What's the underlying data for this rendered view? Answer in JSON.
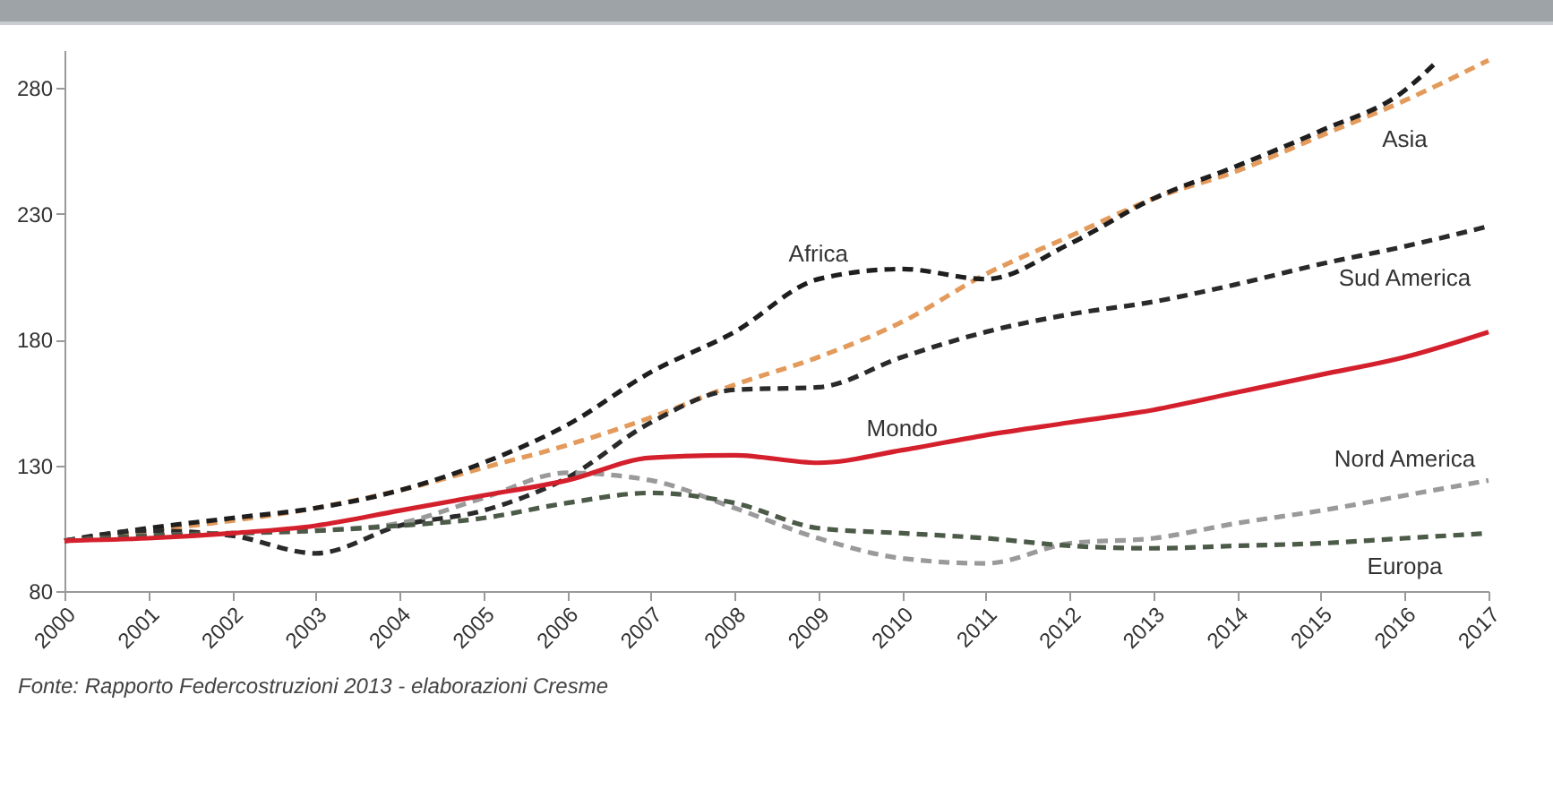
{
  "chart_data": {
    "type": "line",
    "x": [
      2000,
      2001,
      2002,
      2003,
      2004,
      2005,
      2006,
      2007,
      2008,
      2009,
      2010,
      2011,
      2012,
      2013,
      2014,
      2015,
      2016,
      2017
    ],
    "xlim": [
      2000,
      2017
    ],
    "xticks": [
      2000,
      2001,
      2002,
      2003,
      2004,
      2005,
      2006,
      2007,
      2008,
      2009,
      2010,
      2011,
      2012,
      2013,
      2014,
      2015,
      2016,
      2017
    ],
    "ylim": [
      80,
      295
    ],
    "yticks": [
      80,
      130,
      180,
      230,
      280
    ],
    "grid": false,
    "legend": false,
    "marker": "none",
    "series": [
      {
        "name": "Asia",
        "color": "#e39a5a",
        "line_style": "dashed",
        "values": [
          100,
          104,
          108,
          113,
          120,
          129,
          138,
          149,
          162,
          173,
          187,
          206,
          221,
          236,
          247,
          261,
          275,
          291
        ]
      },
      {
        "name": "Africa",
        "color": "#1e1e1e",
        "line_style": "dashed",
        "x": [
          2000,
          2001,
          2002,
          2003,
          2004,
          2005,
          2006,
          2007,
          2008,
          2009,
          2010,
          2011,
          2012,
          2013,
          2014,
          2015,
          2016,
          2016.4
        ],
        "values": [
          100,
          105,
          109,
          113,
          120,
          131,
          146,
          167,
          183,
          204,
          208,
          204,
          218,
          236,
          249,
          263,
          279,
          291
        ]
      },
      {
        "name": "Sud America",
        "color": "#2a2a2a",
        "line_style": "dashed",
        "values": [
          100,
          104,
          102,
          95,
          106,
          112,
          125,
          147,
          160,
          161,
          173,
          183,
          190,
          195,
          202,
          210,
          217,
          225
        ]
      },
      {
        "name": "Mondo",
        "color": "#d4202c",
        "line_style": "solid",
        "values": [
          100,
          101,
          103,
          106,
          112,
          118,
          124,
          133,
          134,
          131,
          136,
          142,
          147,
          152,
          159,
          166,
          173,
          183
        ]
      },
      {
        "name": "Nord America",
        "color": "#9a9a9a",
        "line_style": "dashed",
        "values": [
          100,
          102,
          103,
          104,
          107,
          117,
          127,
          124,
          113,
          101,
          93,
          91,
          99,
          101,
          107,
          112,
          118,
          124
        ]
      },
      {
        "name": "Europa",
        "color": "#4c5a48",
        "line_style": "dashed",
        "values": [
          100,
          102,
          103,
          104,
          106,
          109,
          115,
          119,
          115,
          105,
          103,
          101,
          98,
          97,
          98,
          99,
          101,
          103
        ]
      }
    ],
    "annotations": [
      "Fonte: Rapporto Federcostruzioni 2013 - elaborazioni Cresme"
    ]
  }
}
